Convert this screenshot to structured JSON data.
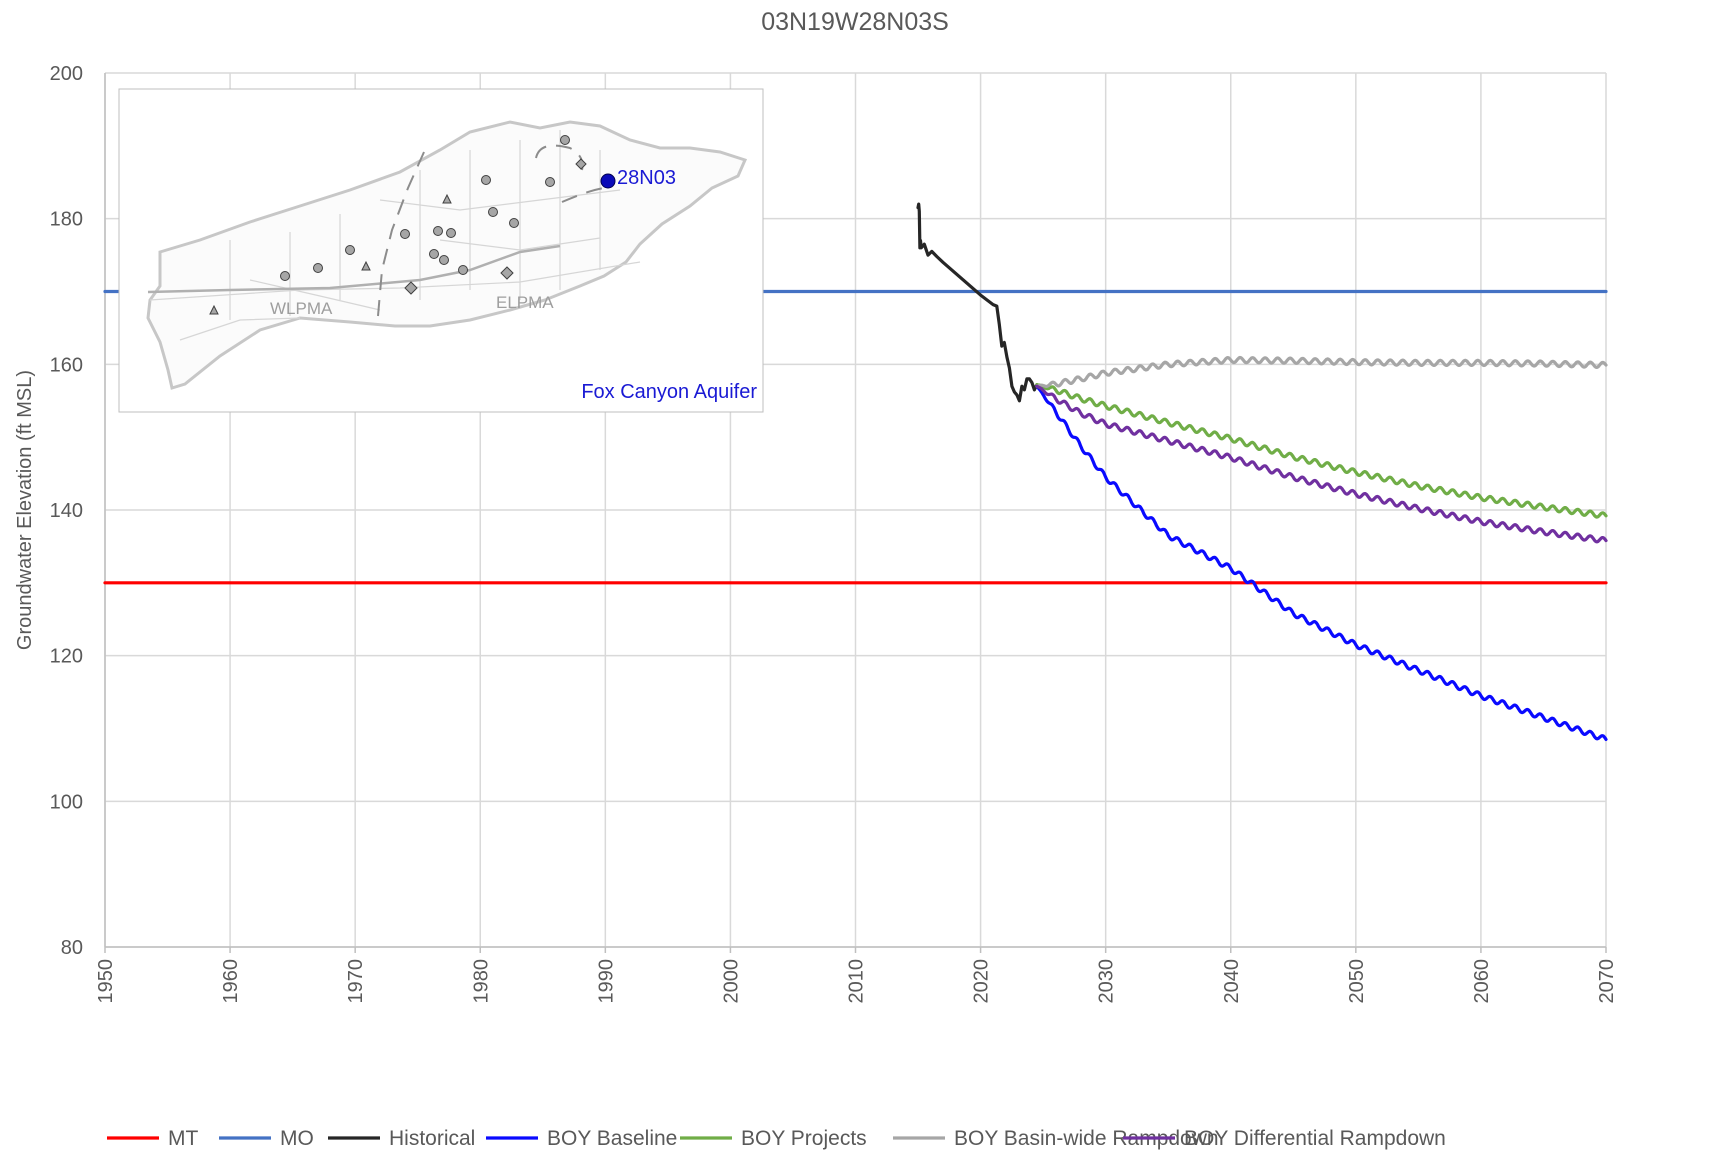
{
  "chart_data": {
    "type": "line",
    "title": "03N19W28N03S",
    "xlabel": "",
    "ylabel": "Groundwater Elevation (ft MSL)",
    "xlim": [
      1950,
      2070
    ],
    "ylim": [
      80,
      200
    ],
    "x_ticks": [
      "1950",
      "1960",
      "1970",
      "1980",
      "1990",
      "2000",
      "2010",
      "2020",
      "2030",
      "2040",
      "2050",
      "2060",
      "2070"
    ],
    "y_ticks": [
      "80",
      "100",
      "120",
      "140",
      "160",
      "180",
      "200"
    ],
    "grid": true,
    "legend_position": "bottom",
    "series": [
      {
        "name": "MT",
        "color": "#ff0000",
        "style": "flat",
        "x": [
          1950,
          2070
        ],
        "y": [
          130,
          130
        ]
      },
      {
        "name": "MO",
        "color": "#4472c4",
        "style": "flat",
        "x": [
          1950,
          2070
        ],
        "y": [
          170,
          170
        ]
      },
      {
        "name": "Historical",
        "color": "#262626",
        "style": "raw",
        "x": [
          2015.0,
          2015.05,
          2015.1,
          2015.15,
          2015.2,
          2015.25,
          2015.5,
          2015.8,
          2016.1,
          2016.5,
          2017.0,
          2018.0,
          2019.0,
          2020.0,
          2021.0,
          2021.3,
          2021.5,
          2021.7,
          2021.9,
          2022.1,
          2022.3,
          2022.5,
          2022.7,
          2022.9,
          2023.1,
          2023.3,
          2023.5,
          2023.7,
          2023.9,
          2024.1,
          2024.3,
          2024.5
        ],
        "y": [
          181.5,
          182.0,
          181.0,
          176.0,
          177.0,
          176.0,
          176.5,
          175.0,
          175.5,
          174.8,
          174.0,
          172.5,
          171.0,
          169.5,
          168.2,
          168.0,
          165.5,
          162.5,
          163.0,
          161.0,
          159.5,
          157.0,
          156.2,
          155.8,
          155.0,
          157.0,
          156.5,
          158.0,
          158.0,
          157.5,
          156.5,
          157.2
        ]
      },
      {
        "name": "BOY Baseline",
        "color": "#0a0aff",
        "style": "seasonal",
        "x": [
          2024.5,
          2026,
          2028,
          2030,
          2035,
          2040,
          2045,
          2050,
          2055,
          2060,
          2065,
          2070
        ],
        "y": [
          157.0,
          153.5,
          148.8,
          144.5,
          136.5,
          132.0,
          125.8,
          121.5,
          118.0,
          114.5,
          111.5,
          108.5
        ]
      },
      {
        "name": "BOY Projects",
        "color": "#70ad47",
        "style": "seasonal",
        "x": [
          2024.5,
          2026,
          2028,
          2030,
          2035,
          2040,
          2045,
          2050,
          2055,
          2060,
          2065,
          2070
        ],
        "y": [
          157.2,
          156.5,
          155.3,
          154.3,
          152.0,
          149.8,
          147.3,
          145.2,
          143.3,
          141.7,
          140.4,
          139.2
        ]
      },
      {
        "name": "BOY Basin-wide Rampdown",
        "color": "#a6a6a6",
        "style": "seasonal",
        "x": [
          2024.5,
          2026,
          2028,
          2030,
          2035,
          2040,
          2045,
          2050,
          2055,
          2060,
          2065,
          2070
        ],
        "y": [
          157.0,
          157.3,
          158.0,
          158.8,
          160.0,
          160.6,
          160.5,
          160.3,
          160.2,
          160.2,
          160.1,
          159.9
        ]
      },
      {
        "name": "BOY Differential Rampdown",
        "color": "#7030a0",
        "style": "seasonal",
        "x": [
          2024.5,
          2026,
          2028,
          2030,
          2035,
          2040,
          2045,
          2050,
          2055,
          2060,
          2065,
          2070
        ],
        "y": [
          157.0,
          155.3,
          153.3,
          151.8,
          149.5,
          147.2,
          144.5,
          142.2,
          140.2,
          138.4,
          137.0,
          135.8
        ]
      }
    ]
  },
  "inset_map": {
    "well_label": "28N03",
    "aquifer_label": "Fox Canyon Aquifer",
    "region_labels": [
      "WLPMA",
      "ELPMA"
    ],
    "marker_colors": {
      "well": "#0a0ab8",
      "other": "#a6a6a6",
      "outline": "#555555"
    }
  }
}
